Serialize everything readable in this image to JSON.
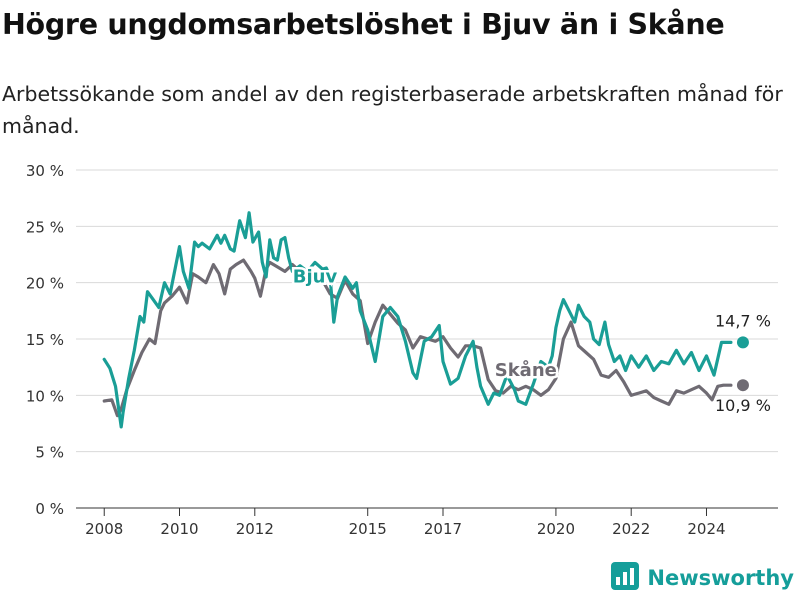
{
  "header": {
    "title": "Högre ungdomsarbetslöshet i Bjuv än i Skåne",
    "subtitle": "Arbetssökande som andel av den registerbaserade arbetskraften månad för månad."
  },
  "brand": {
    "name": "Newsworthy",
    "icon": "bar-chart-logo-icon",
    "color": "#159e9a"
  },
  "chart_data": {
    "type": "line",
    "title": "Högre ungdomsarbetslöshet i Bjuv än i Skåne",
    "xlabel": "",
    "ylabel": "",
    "xlim": [
      2007.25,
      2025.9
    ],
    "ylim": [
      0,
      30
    ],
    "y_ticks": [
      0,
      5,
      10,
      15,
      20,
      25,
      30
    ],
    "y_tick_labels": [
      "0 %",
      "5 %",
      "10 %",
      "15 %",
      "20 %",
      "25 %",
      "30 %"
    ],
    "x_ticks": [
      2008,
      2010,
      2012,
      2015,
      2017,
      2020,
      2022,
      2024
    ],
    "x_tick_labels": [
      "2008",
      "2010",
      "2012",
      "2015",
      "2017",
      "2020",
      "2022",
      "2024"
    ],
    "grid": true,
    "series": [
      {
        "name": "Bjuv",
        "color": "#1a9e96",
        "end_label": "14,7 %",
        "x": [
          2008.0,
          2008.15,
          2008.3,
          2008.45,
          2008.5,
          2008.65,
          2008.8,
          2008.95,
          2009.05,
          2009.15,
          2009.3,
          2009.45,
          2009.6,
          2009.75,
          2009.9,
          2010.0,
          2010.1,
          2010.25,
          2010.4,
          2010.5,
          2010.6,
          2010.8,
          2011.0,
          2011.1,
          2011.2,
          2011.35,
          2011.45,
          2011.6,
          2011.75,
          2011.85,
          2011.95,
          2012.1,
          2012.2,
          2012.3,
          2012.4,
          2012.5,
          2012.6,
          2012.7,
          2012.8,
          2012.9,
          2013.0,
          2013.2,
          2013.4,
          2013.6,
          2013.8,
          2013.9,
          2014.0,
          2014.1,
          2014.2,
          2014.4,
          2014.6,
          2014.7,
          2014.8,
          2015.0,
          2015.2,
          2015.4,
          2015.6,
          2015.8,
          2016.0,
          2016.2,
          2016.3,
          2016.5,
          2016.7,
          2016.9,
          2017.0,
          2017.2,
          2017.4,
          2017.6,
          2017.8,
          2017.9,
          2018.0,
          2018.2,
          2018.35,
          2018.5,
          2018.7,
          2018.9,
          2019.0,
          2019.2,
          2019.4,
          2019.6,
          2019.8,
          2019.9,
          2020.0,
          2020.1,
          2020.2,
          2020.35,
          2020.5,
          2020.6,
          2020.75,
          2020.9,
          2021.0,
          2021.15,
          2021.3,
          2021.4,
          2021.55,
          2021.7,
          2021.85,
          2022.0,
          2022.2,
          2022.4,
          2022.6,
          2022.8,
          2023.0,
          2023.2,
          2023.4,
          2023.6,
          2023.8,
          2024.0,
          2024.2,
          2024.4,
          2024.55,
          2024.65
        ],
        "values": [
          13.2,
          12.4,
          10.8,
          7.2,
          8.5,
          11.5,
          14.0,
          17.0,
          16.5,
          19.2,
          18.5,
          17.8,
          20.0,
          19.0,
          21.5,
          23.2,
          21.0,
          19.5,
          23.6,
          23.2,
          23.5,
          23.0,
          24.2,
          23.5,
          24.2,
          23.0,
          22.8,
          25.5,
          24.0,
          26.2,
          23.6,
          24.5,
          21.8,
          20.5,
          23.8,
          22.2,
          22.0,
          23.8,
          24.0,
          22.2,
          21.0,
          21.5,
          21.0,
          21.8,
          21.2,
          21.3,
          20.5,
          16.5,
          18.8,
          20.5,
          19.5,
          20.0,
          17.5,
          15.8,
          13.0,
          17.0,
          17.8,
          17.0,
          14.8,
          12.0,
          11.5,
          14.8,
          15.2,
          16.2,
          13.0,
          11.0,
          11.5,
          13.5,
          14.8,
          12.5,
          10.8,
          9.2,
          10.2,
          10.0,
          11.8,
          10.5,
          9.5,
          9.2,
          11.0,
          13.0,
          12.5,
          13.5,
          16.0,
          17.5,
          18.5,
          17.5,
          16.5,
          18.0,
          17.0,
          16.5,
          15.0,
          14.5,
          16.5,
          14.5,
          13.0,
          13.5,
          12.2,
          13.5,
          12.5,
          13.5,
          12.2,
          13.0,
          12.8,
          14.0,
          12.8,
          13.8,
          12.2,
          13.5,
          11.8,
          14.7,
          14.7,
          14.7
        ]
      },
      {
        "name": "Skåne",
        "color": "#6f6b73",
        "end_label": "10,9 %",
        "x": [
          2008.0,
          2008.2,
          2008.35,
          2008.45,
          2008.6,
          2008.8,
          2009.0,
          2009.2,
          2009.35,
          2009.5,
          2009.6,
          2009.8,
          2010.0,
          2010.2,
          2010.35,
          2010.5,
          2010.7,
          2010.9,
          2011.05,
          2011.2,
          2011.35,
          2011.5,
          2011.7,
          2011.9,
          2012.0,
          2012.15,
          2012.3,
          2012.4,
          2012.6,
          2012.8,
          2013.0,
          2013.2,
          2013.4,
          2013.6,
          2013.8,
          2014.0,
          2014.2,
          2014.4,
          2014.6,
          2014.8,
          2015.0,
          2015.2,
          2015.4,
          2015.6,
          2015.8,
          2016.0,
          2016.2,
          2016.4,
          2016.6,
          2016.8,
          2017.0,
          2017.2,
          2017.4,
          2017.6,
          2017.8,
          2018.0,
          2018.2,
          2018.4,
          2018.6,
          2018.8,
          2019.0,
          2019.2,
          2019.4,
          2019.6,
          2019.8,
          2020.0,
          2020.2,
          2020.4,
          2020.6,
          2020.8,
          2021.0,
          2021.2,
          2021.4,
          2021.6,
          2021.8,
          2022.0,
          2022.2,
          2022.4,
          2022.6,
          2022.8,
          2023.0,
          2023.2,
          2023.4,
          2023.6,
          2023.8,
          2024.0,
          2024.15,
          2024.3,
          2024.45,
          2024.55,
          2024.65
        ],
        "values": [
          9.5,
          9.6,
          8.2,
          8.8,
          10.5,
          12.2,
          13.8,
          15.0,
          14.6,
          17.5,
          18.2,
          18.8,
          19.6,
          18.2,
          20.8,
          20.5,
          20.0,
          21.6,
          20.8,
          19.0,
          21.2,
          21.6,
          22.0,
          21.0,
          20.4,
          18.8,
          21.2,
          21.8,
          21.4,
          21.0,
          21.6,
          21.0,
          21.2,
          20.8,
          20.2,
          19.0,
          18.6,
          20.2,
          19.0,
          18.4,
          14.6,
          16.5,
          18.0,
          17.2,
          16.4,
          15.8,
          14.2,
          15.2,
          15.0,
          14.8,
          15.2,
          14.2,
          13.4,
          14.4,
          14.4,
          14.2,
          11.4,
          10.4,
          10.2,
          10.8,
          10.5,
          10.8,
          10.5,
          10.0,
          10.5,
          11.5,
          15.0,
          16.5,
          14.4,
          13.8,
          13.2,
          11.8,
          11.6,
          12.2,
          11.2,
          10.0,
          10.2,
          10.4,
          9.8,
          9.5,
          9.2,
          10.4,
          10.2,
          10.5,
          10.8,
          10.2,
          9.6,
          10.8,
          10.9,
          10.9,
          10.9
        ]
      }
    ],
    "annotations": [
      {
        "text": "Bjuv",
        "series": "Bjuv",
        "x": 2013.6,
        "y": 20.0
      },
      {
        "text": "Skåne",
        "series": "Skåne",
        "x": 2019.2,
        "y": 11.7
      }
    ]
  }
}
